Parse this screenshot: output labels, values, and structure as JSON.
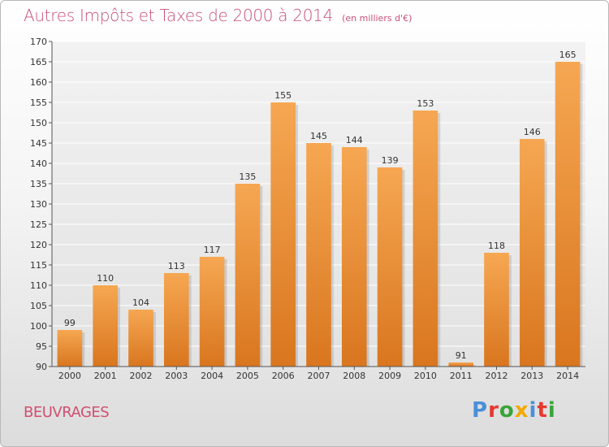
{
  "title": "Autres Impôts et Taxes de 2000 à 2014",
  "subtitle": "(en milliers d'€)",
  "commune": "BEUVRAGES",
  "logo_text": "Proxiti",
  "colors": {
    "title": "#c8507a",
    "bar_top": "#f6a752",
    "bar_bottom": "#d9761f",
    "logo": [
      "#4a90d9",
      "#e8382f",
      "#3aa53a",
      "#f2a900",
      "#4a90d9",
      "#e8382f",
      "#3aa53a"
    ]
  },
  "chart_data": {
    "type": "bar",
    "title": "Autres Impôts et Taxes de 2000 à 2014",
    "subtitle": "(en milliers d'€)",
    "xlabel": "",
    "ylabel": "",
    "categories": [
      "2000",
      "2001",
      "2002",
      "2003",
      "2004",
      "2005",
      "2006",
      "2007",
      "2008",
      "2009",
      "2010",
      "2011",
      "2012",
      "2013",
      "2014"
    ],
    "values": [
      99,
      110,
      104,
      113,
      117,
      135,
      155,
      145,
      144,
      139,
      153,
      91,
      118,
      146,
      165
    ],
    "ylim": [
      90,
      170
    ],
    "yticks": [
      90,
      95,
      100,
      105,
      110,
      115,
      120,
      125,
      130,
      135,
      140,
      145,
      150,
      155,
      160,
      165,
      170
    ],
    "grid": true,
    "data_labels": true
  }
}
